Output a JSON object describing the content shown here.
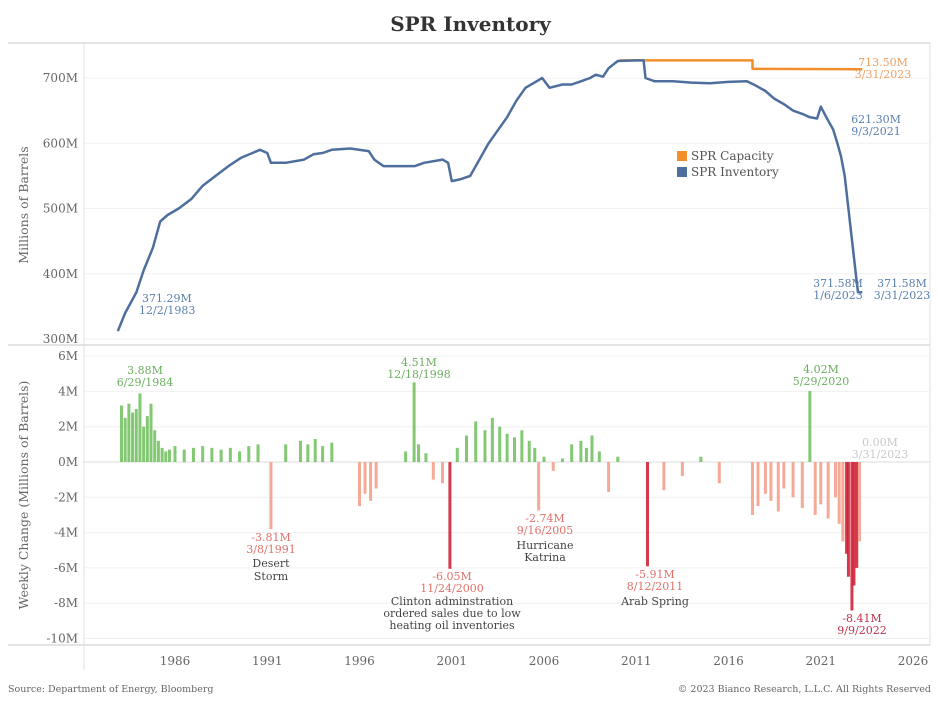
{
  "title": "SPR Inventory",
  "footer": {
    "source": "Source: Department of Energy, Bloomberg",
    "copyright": "© 2023 Bianco Research, L.L.C. All Rights Reserved"
  },
  "colors": {
    "capacity": "#F28E2B",
    "inventory": "#4E6F9E",
    "inventory_label": "#5A7FAF",
    "positive_bar": "#6DBE5A",
    "negative_bar_light": "#F4A08C",
    "negative_bar_dark": "#D0233A",
    "positive_label": "#6BAE5E",
    "negative_label": "#E0706A"
  },
  "chart_data": [
    {
      "type": "line",
      "title": "SPR Inventory",
      "xlabel": "",
      "ylabel": "Millions of Barrels",
      "xlim": [
        1982,
        2026.5
      ],
      "ylim": [
        300,
        730
      ],
      "yticks": [
        300,
        400,
        500,
        600,
        700
      ],
      "ytick_labels": [
        "300M",
        "400M",
        "500M",
        "600M",
        "700M"
      ],
      "grid": true,
      "legend": {
        "position": "center-right",
        "entries": [
          "SPR Capacity",
          "SPR Inventory"
        ]
      },
      "series": [
        {
          "name": "SPR Capacity",
          "x": [
            2010.1,
            2017.3,
            2017.3,
            2023.25
          ],
          "y": [
            727,
            727,
            714,
            713.5
          ]
        },
        {
          "name": "SPR Inventory",
          "x": [
            1982.9,
            1983.3,
            1983.9,
            1984.3,
            1984.8,
            1985.2,
            1985.6,
            1986.2,
            1986.9,
            1987.5,
            1988.2,
            1988.9,
            1989.6,
            1990.2,
            1990.6,
            1991.0,
            1991.2,
            1991.5,
            1992.0,
            1993.0,
            1993.5,
            1994.0,
            1994.5,
            1995.5,
            1996.5,
            1996.8,
            1997.3,
            1998.0,
            1999.0,
            1999.5,
            2000.5,
            2000.8,
            2001.0,
            2001.5,
            2002.0,
            2002.5,
            2003.0,
            2003.5,
            2004.0,
            2004.5,
            2005.0,
            2005.6,
            2005.9,
            2006.3,
            2007.0,
            2007.5,
            2008.0,
            2008.5,
            2008.8,
            2009.2,
            2009.5,
            2010.0,
            2011.0,
            2011.4,
            2011.5,
            2012.0,
            2013.0,
            2014.0,
            2015.0,
            2016.0,
            2017.0,
            2017.5,
            2018.0,
            2018.5,
            2019.0,
            2019.5,
            2020.0,
            2020.4,
            2020.8,
            2021.0,
            2021.3,
            2021.67,
            2021.9,
            2022.1,
            2022.3,
            2022.5,
            2022.7,
            2022.9,
            2023.02,
            2023.25
          ],
          "y": [
            312,
            340,
            371.29,
            405,
            440,
            480,
            490,
            500,
            515,
            535,
            550,
            565,
            578,
            585,
            590,
            585,
            570,
            570,
            570,
            575,
            583,
            585,
            590,
            592,
            588,
            575,
            565,
            565,
            565,
            570,
            575,
            570,
            542,
            545,
            550,
            575,
            600,
            620,
            640,
            665,
            685,
            695,
            700,
            685,
            690,
            690,
            695,
            700,
            705,
            702,
            715,
            726,
            727,
            727,
            700,
            695,
            695,
            693,
            692,
            694,
            695,
            688,
            680,
            668,
            660,
            650,
            645,
            640,
            638,
            656,
            640,
            621.3,
            600,
            580,
            550,
            500,
            450,
            400,
            371.58,
            371.58
          ]
        }
      ],
      "annotations": [
        {
          "series": "SPR Inventory",
          "value": "371.29M",
          "date": "12/2/1983"
        },
        {
          "series": "SPR Capacity",
          "value": "713.50M",
          "date": "3/31/2023"
        },
        {
          "series": "SPR Inventory",
          "value": "621.30M",
          "date": "9/3/2021"
        },
        {
          "series": "SPR Inventory",
          "value": "371.58M",
          "date": "1/6/2023"
        },
        {
          "series": "SPR Inventory",
          "value": "371.58M",
          "date": "3/31/2023"
        }
      ]
    },
    {
      "type": "bar",
      "title": "",
      "xlabel": "",
      "ylabel": "Weekly Change (Millions of Barrels)",
      "xlim": [
        1982,
        2026.5
      ],
      "ylim": [
        -10.3,
        6.3
      ],
      "yticks": [
        -10,
        -8,
        -6,
        -4,
        -2,
        0,
        2,
        4,
        6
      ],
      "ytick_labels": [
        "-10M",
        "-8M",
        "-6M",
        "-4M",
        "-2M",
        "0M",
        "2M",
        "4M",
        "6M"
      ],
      "xticks": [
        1986,
        1991,
        1996,
        2001,
        2006,
        2011,
        2016,
        2021,
        2026
      ],
      "xtick_labels": [
        "1986",
        "1991",
        "1996",
        "2001",
        "2006",
        "2011",
        "2016",
        "2021",
        "2026"
      ],
      "grid": true,
      "x": [
        1983.1,
        1983.3,
        1983.5,
        1983.7,
        1983.9,
        1984.1,
        1984.3,
        1984.5,
        1984.7,
        1984.9,
        1985.1,
        1985.3,
        1985.5,
        1985.7,
        1986.0,
        1986.5,
        1987.0,
        1987.5,
        1988.0,
        1988.5,
        1989.0,
        1989.5,
        1990.0,
        1990.5,
        1991.2,
        1992.0,
        1992.8,
        1993.2,
        1993.6,
        1994.0,
        1994.5,
        1996.0,
        1996.3,
        1996.6,
        1996.9,
        1998.5,
        1998.96,
        1999.2,
        1999.6,
        2000.0,
        2000.5,
        2000.9,
        2001.3,
        2001.8,
        2002.3,
        2002.8,
        2003.2,
        2003.6,
        2004.0,
        2004.4,
        2004.8,
        2005.2,
        2005.5,
        2005.71,
        2006.0,
        2006.5,
        2007.0,
        2007.5,
        2008.0,
        2008.3,
        2008.6,
        2009.0,
        2009.5,
        2010.0,
        2011.61,
        2012.5,
        2013.5,
        2014.5,
        2015.5,
        2017.3,
        2017.6,
        2018.0,
        2018.3,
        2018.7,
        2019.0,
        2019.5,
        2020.0,
        2020.41,
        2020.7,
        2021.0,
        2021.4,
        2021.8,
        2022.0,
        2022.2,
        2022.4,
        2022.5,
        2022.69,
        2022.8,
        2022.95,
        2023.1,
        2023.25
      ],
      "values": [
        3.2,
        2.5,
        3.3,
        2.8,
        3.0,
        3.88,
        2.0,
        2.6,
        3.3,
        1.8,
        1.2,
        0.8,
        0.6,
        0.7,
        0.9,
        0.7,
        0.8,
        0.9,
        0.8,
        0.7,
        0.8,
        0.6,
        0.9,
        1.0,
        -3.81,
        1.0,
        1.2,
        1.0,
        1.3,
        0.9,
        1.1,
        -2.5,
        -1.8,
        -2.2,
        -1.5,
        0.6,
        4.51,
        1.0,
        0.5,
        -1.0,
        -1.2,
        -6.05,
        0.8,
        1.5,
        2.3,
        1.8,
        2.5,
        2.0,
        1.6,
        1.4,
        1.8,
        1.2,
        0.8,
        -2.74,
        0.3,
        -0.5,
        0.2,
        1.0,
        1.2,
        0.8,
        1.5,
        0.6,
        -1.7,
        0.3,
        -5.91,
        -1.6,
        -0.8,
        0.3,
        -1.2,
        -3.0,
        -2.5,
        -1.8,
        -2.2,
        -2.8,
        -1.5,
        -2.0,
        -2.6,
        4.02,
        -3.0,
        -2.4,
        -3.2,
        -2.0,
        -3.5,
        -4.5,
        -5.2,
        -6.5,
        -8.41,
        -7.0,
        -6.0,
        -4.5,
        0.0
      ],
      "annotations": [
        {
          "value": "3.88M",
          "date": "6/29/1984",
          "note": ""
        },
        {
          "value": "-3.81M",
          "date": "3/8/1991",
          "note": "Desert Storm"
        },
        {
          "value": "4.51M",
          "date": "12/18/1998",
          "note": ""
        },
        {
          "value": "-6.05M",
          "date": "11/24/2000",
          "note": "Clinton adminstration ordered sales due to low heating oil inventories"
        },
        {
          "value": "-2.74M",
          "date": "9/16/2005",
          "note": "Hurricane Katrina"
        },
        {
          "value": "-5.91M",
          "date": "8/12/2011",
          "note": "Arab Spring"
        },
        {
          "value": "4.02M",
          "date": "5/29/2020",
          "note": ""
        },
        {
          "value": "0.00M",
          "date": "3/31/2023",
          "note": ""
        },
        {
          "value": "-8.41M",
          "date": "9/9/2022",
          "note": ""
        }
      ]
    }
  ],
  "text": {
    "top_ylabel": "Millions of Barrels",
    "bottom_ylabel": "Weekly Change (Millions of Barrels)",
    "legend_capacity": "SPR Capacity",
    "legend_inventory": "SPR Inventory",
    "ann": {
      "inv1983_v": "371.29M",
      "inv1983_d": "12/2/1983",
      "cap_v": "713.50M",
      "cap_d": "3/31/2023",
      "inv2021_v": "621.30M",
      "inv2021_d": "9/3/2021",
      "inv2023a_v": "371.58M",
      "inv2023a_d": "1/6/2023",
      "inv2023b_v": "371.58M",
      "inv2023b_d": "3/31/2023",
      "wc1984_v": "3.88M",
      "wc1984_d": "6/29/1984",
      "wc1991_v": "-3.81M",
      "wc1991_d": "3/8/1991",
      "wc1991_n1": "Desert",
      "wc1991_n2": "Storm",
      "wc1998_v": "4.51M",
      "wc1998_d": "12/18/1998",
      "wc2000_v": "-6.05M",
      "wc2000_d": "11/24/2000",
      "wc2000_n1": "Clinton adminstration",
      "wc2000_n2": "ordered sales due to low",
      "wc2000_n3": "heating oil inventories",
      "wc2005_v": "-2.74M",
      "wc2005_d": "9/16/2005",
      "wc2005_n1": "Hurricane",
      "wc2005_n2": "Katrina",
      "wc2011_v": "-5.91M",
      "wc2011_d": "8/12/2011",
      "wc2011_n1": "Arab Spring",
      "wc2020_v": "4.02M",
      "wc2020_d": "5/29/2020",
      "wc2023_v": "0.00M",
      "wc2023_d": "3/31/2023",
      "wc2022_v": "-8.41M",
      "wc2022_d": "9/9/2022"
    }
  }
}
